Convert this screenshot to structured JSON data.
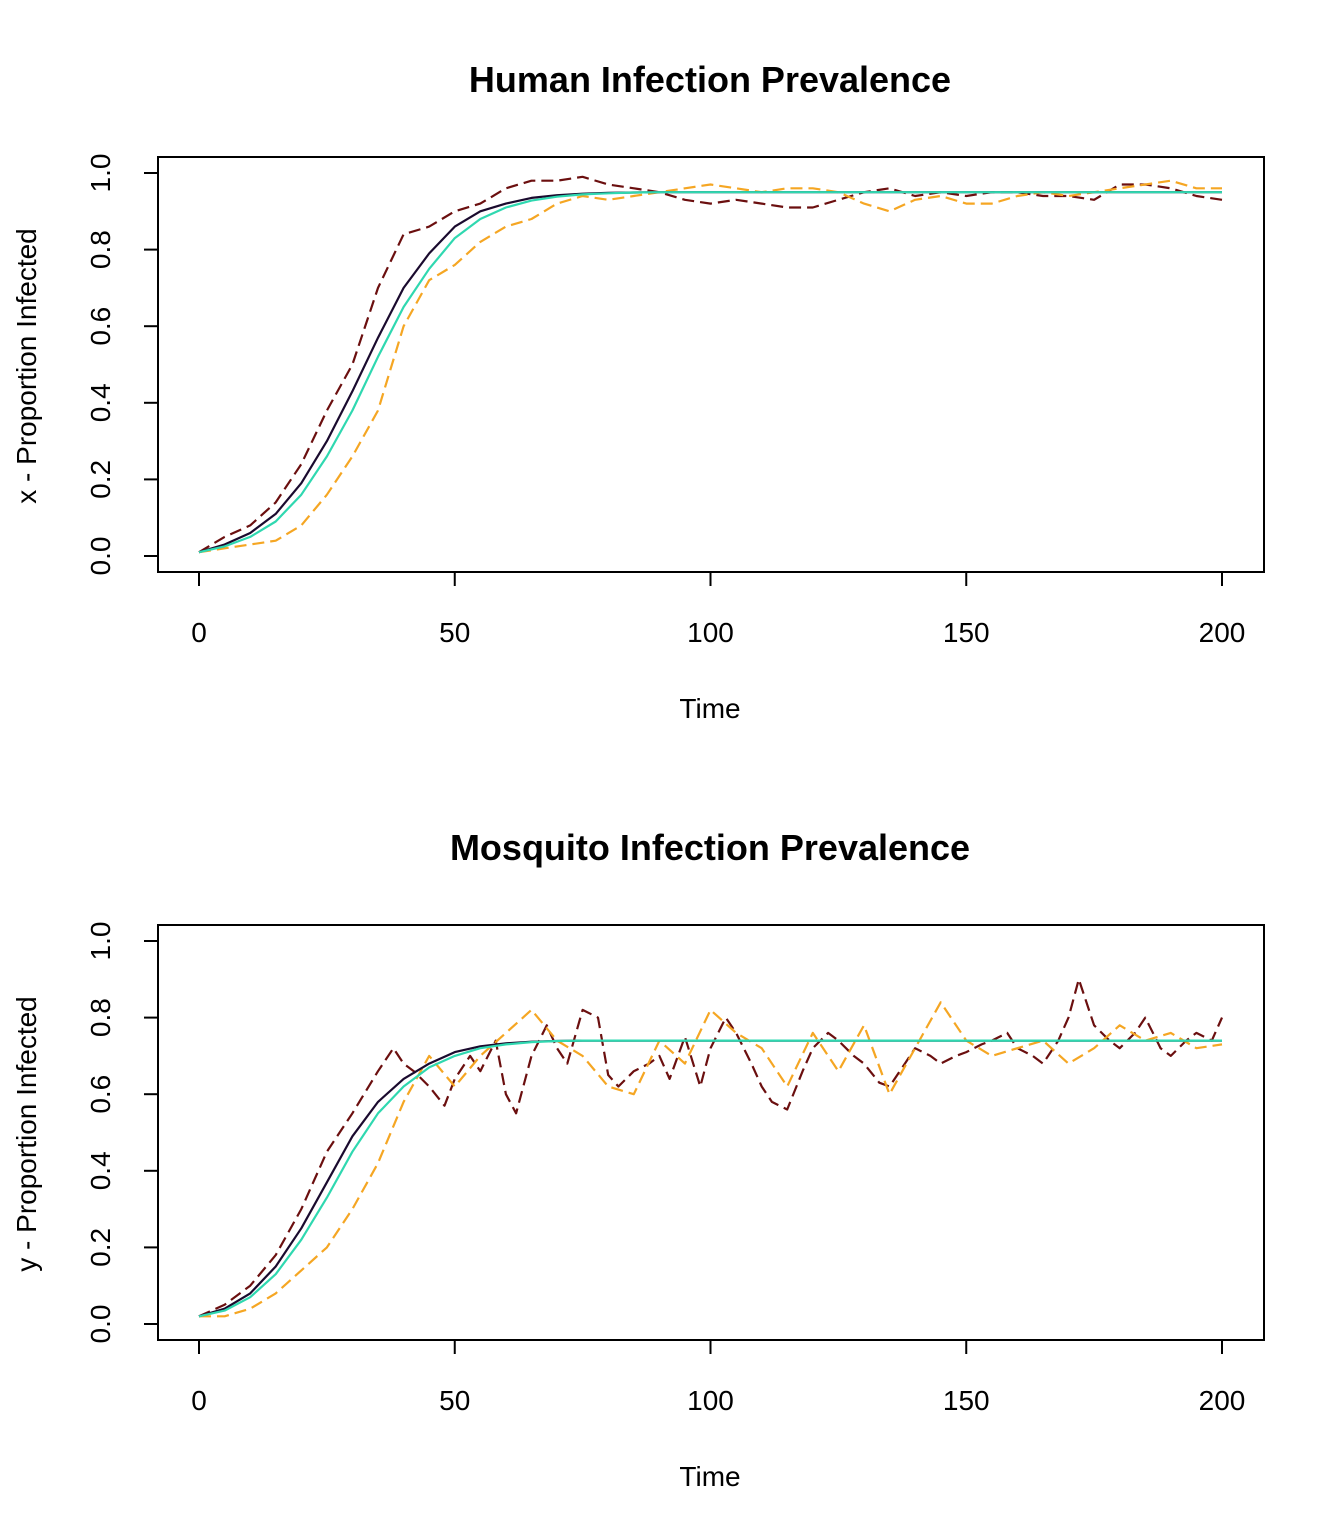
{
  "chart_data": [
    {
      "type": "line",
      "title": "Human Infection Prevalence",
      "xlabel": "Time",
      "ylabel": "x - Proportion Infected",
      "xlim": [
        0,
        200
      ],
      "ylim": [
        0,
        1
      ],
      "xticks": [
        0,
        50,
        100,
        150,
        200
      ],
      "xtick_labels": [
        "0",
        "50",
        "100",
        "150",
        "200"
      ],
      "yticks": [
        0,
        0.2,
        0.4,
        0.6,
        0.8,
        1.0
      ],
      "ytick_labels": [
        "0.0",
        "0.2",
        "0.4",
        "0.6",
        "0.8",
        "1.0"
      ],
      "grid": false,
      "legend": "none",
      "series": [
        {
          "style": "dashed",
          "color": "#6b0f0f",
          "x": [
            0,
            5,
            10,
            15,
            20,
            25,
            30,
            35,
            40,
            45,
            50,
            55,
            60,
            65,
            70,
            75,
            80,
            85,
            90,
            95,
            100,
            105,
            110,
            115,
            120,
            125,
            130,
            135,
            140,
            145,
            150,
            155,
            160,
            165,
            170,
            175,
            180,
            185,
            190,
            195,
            200
          ],
          "y": [
            0.01,
            0.05,
            0.08,
            0.14,
            0.24,
            0.38,
            0.5,
            0.7,
            0.84,
            0.86,
            0.9,
            0.92,
            0.96,
            0.98,
            0.98,
            0.99,
            0.97,
            0.96,
            0.95,
            0.93,
            0.92,
            0.93,
            0.92,
            0.91,
            0.91,
            0.93,
            0.95,
            0.96,
            0.94,
            0.95,
            0.94,
            0.95,
            0.95,
            0.94,
            0.94,
            0.93,
            0.97,
            0.97,
            0.96,
            0.94,
            0.93
          ]
        },
        {
          "style": "dashed",
          "color": "#f5a623",
          "x": [
            0,
            5,
            10,
            15,
            20,
            25,
            30,
            35,
            40,
            45,
            50,
            55,
            60,
            65,
            70,
            75,
            80,
            85,
            90,
            95,
            100,
            105,
            110,
            115,
            120,
            125,
            130,
            135,
            140,
            145,
            150,
            155,
            160,
            165,
            170,
            175,
            180,
            185,
            190,
            195,
            200
          ],
          "y": [
            0.01,
            0.02,
            0.03,
            0.04,
            0.08,
            0.16,
            0.26,
            0.38,
            0.6,
            0.72,
            0.76,
            0.82,
            0.86,
            0.88,
            0.92,
            0.94,
            0.93,
            0.94,
            0.95,
            0.96,
            0.97,
            0.96,
            0.95,
            0.96,
            0.96,
            0.95,
            0.92,
            0.9,
            0.93,
            0.94,
            0.92,
            0.92,
            0.94,
            0.95,
            0.94,
            0.95,
            0.96,
            0.97,
            0.98,
            0.96,
            0.96
          ]
        },
        {
          "style": "solid",
          "color": "#1a0a2e",
          "x": [
            0,
            5,
            10,
            15,
            20,
            25,
            30,
            35,
            40,
            45,
            50,
            55,
            60,
            65,
            70,
            75,
            80,
            85,
            90,
            95,
            100,
            120,
            140,
            160,
            180,
            200
          ],
          "y": [
            0.01,
            0.03,
            0.06,
            0.11,
            0.19,
            0.3,
            0.43,
            0.57,
            0.7,
            0.79,
            0.86,
            0.9,
            0.92,
            0.935,
            0.942,
            0.946,
            0.948,
            0.949,
            0.95,
            0.95,
            0.95,
            0.95,
            0.95,
            0.95,
            0.95,
            0.95
          ]
        },
        {
          "style": "solid",
          "color": "#2fd8b0",
          "x": [
            0,
            5,
            10,
            15,
            20,
            25,
            30,
            35,
            40,
            45,
            50,
            55,
            60,
            65,
            70,
            75,
            80,
            85,
            90,
            95,
            100,
            120,
            140,
            160,
            180,
            200
          ],
          "y": [
            0.01,
            0.025,
            0.05,
            0.09,
            0.16,
            0.26,
            0.38,
            0.52,
            0.65,
            0.75,
            0.83,
            0.88,
            0.91,
            0.928,
            0.938,
            0.944,
            0.947,
            0.949,
            0.95,
            0.95,
            0.95,
            0.95,
            0.95,
            0.95,
            0.95,
            0.95
          ]
        }
      ]
    },
    {
      "type": "line",
      "title": "Mosquito Infection Prevalence",
      "xlabel": "Time",
      "ylabel": "y - Proportion Infected",
      "xlim": [
        0,
        200
      ],
      "ylim": [
        0,
        1
      ],
      "xticks": [
        0,
        50,
        100,
        150,
        200
      ],
      "xtick_labels": [
        "0",
        "50",
        "100",
        "150",
        "200"
      ],
      "yticks": [
        0,
        0.2,
        0.4,
        0.6,
        0.8,
        1.0
      ],
      "ytick_labels": [
        "0.0",
        "0.2",
        "0.4",
        "0.6",
        "0.8",
        "1.0"
      ],
      "grid": false,
      "legend": "none",
      "series": [
        {
          "style": "dashed",
          "color": "#6b0f0f",
          "x": [
            0,
            5,
            10,
            15,
            20,
            25,
            30,
            35,
            38,
            40,
            42,
            45,
            48,
            50,
            53,
            55,
            58,
            60,
            62,
            65,
            68,
            70,
            72,
            75,
            78,
            80,
            82,
            85,
            88,
            90,
            92,
            95,
            98,
            100,
            103,
            105,
            108,
            110,
            112,
            115,
            118,
            120,
            123,
            125,
            128,
            130,
            133,
            135,
            138,
            140,
            143,
            145,
            148,
            150,
            153,
            155,
            158,
            160,
            163,
            165,
            168,
            170,
            172,
            175,
            178,
            180,
            183,
            185,
            188,
            190,
            193,
            195,
            198,
            200
          ],
          "y": [
            0.02,
            0.05,
            0.1,
            0.18,
            0.3,
            0.45,
            0.55,
            0.66,
            0.72,
            0.68,
            0.66,
            0.62,
            0.57,
            0.64,
            0.7,
            0.66,
            0.74,
            0.6,
            0.55,
            0.7,
            0.78,
            0.72,
            0.68,
            0.82,
            0.8,
            0.65,
            0.62,
            0.66,
            0.68,
            0.7,
            0.64,
            0.75,
            0.62,
            0.72,
            0.8,
            0.76,
            0.68,
            0.62,
            0.58,
            0.56,
            0.66,
            0.72,
            0.76,
            0.74,
            0.7,
            0.68,
            0.63,
            0.62,
            0.68,
            0.72,
            0.7,
            0.68,
            0.7,
            0.71,
            0.73,
            0.74,
            0.76,
            0.72,
            0.7,
            0.68,
            0.74,
            0.8,
            0.9,
            0.78,
            0.74,
            0.72,
            0.76,
            0.8,
            0.72,
            0.7,
            0.74,
            0.76,
            0.74,
            0.8
          ]
        },
        {
          "style": "dashed",
          "color": "#f5a623",
          "x": [
            0,
            5,
            10,
            15,
            20,
            25,
            30,
            35,
            40,
            45,
            50,
            55,
            60,
            65,
            70,
            75,
            80,
            85,
            90,
            95,
            100,
            105,
            110,
            115,
            120,
            125,
            130,
            135,
            140,
            145,
            150,
            155,
            160,
            165,
            170,
            175,
            180,
            185,
            190,
            195,
            200
          ],
          "y": [
            0.02,
            0.02,
            0.04,
            0.08,
            0.14,
            0.2,
            0.3,
            0.42,
            0.58,
            0.7,
            0.62,
            0.7,
            0.76,
            0.82,
            0.74,
            0.7,
            0.62,
            0.6,
            0.74,
            0.68,
            0.82,
            0.76,
            0.72,
            0.62,
            0.76,
            0.66,
            0.78,
            0.6,
            0.72,
            0.84,
            0.74,
            0.7,
            0.72,
            0.74,
            0.68,
            0.72,
            0.78,
            0.74,
            0.76,
            0.72,
            0.73
          ]
        },
        {
          "style": "solid",
          "color": "#1a0a2e",
          "x": [
            0,
            5,
            10,
            15,
            20,
            25,
            30,
            35,
            40,
            45,
            50,
            55,
            60,
            65,
            70,
            75,
            80,
            90,
            100,
            120,
            140,
            160,
            180,
            200
          ],
          "y": [
            0.02,
            0.04,
            0.08,
            0.15,
            0.25,
            0.37,
            0.49,
            0.58,
            0.64,
            0.68,
            0.71,
            0.725,
            0.733,
            0.737,
            0.739,
            0.74,
            0.74,
            0.74,
            0.74,
            0.74,
            0.74,
            0.74,
            0.74,
            0.74
          ]
        },
        {
          "style": "solid",
          "color": "#2fd8b0",
          "x": [
            0,
            5,
            10,
            15,
            20,
            25,
            30,
            35,
            40,
            45,
            50,
            55,
            60,
            65,
            70,
            75,
            80,
            90,
            100,
            120,
            140,
            160,
            180,
            200
          ],
          "y": [
            0.02,
            0.035,
            0.07,
            0.13,
            0.22,
            0.33,
            0.45,
            0.55,
            0.62,
            0.67,
            0.7,
            0.72,
            0.73,
            0.736,
            0.739,
            0.74,
            0.74,
            0.74,
            0.74,
            0.74,
            0.74,
            0.74,
            0.74,
            0.74
          ]
        }
      ]
    }
  ]
}
